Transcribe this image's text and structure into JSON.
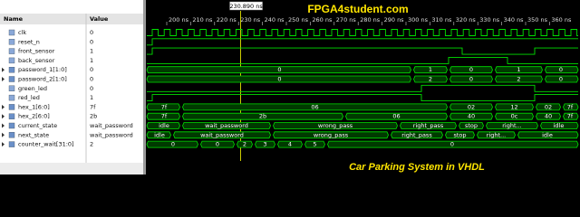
{
  "header": {
    "name": "Name",
    "value": "Value"
  },
  "timeline": {
    "cursor": "230.890 ns",
    "ticks": [
      "200 ns",
      "210 ns",
      "220 ns",
      "230 ns",
      "240 ns",
      "250 ns",
      "260 ns",
      "270 ns",
      "280 ns",
      "290 ns",
      "300 ns",
      "310 ns",
      "320 ns",
      "330 ns",
      "340 ns",
      "350 ns",
      "360 ns"
    ]
  },
  "watermark": {
    "site": "FPGA4student.com",
    "caption": "Car Parking System in VHDL"
  },
  "signals": [
    {
      "name": "clk",
      "value": "0"
    },
    {
      "name": "reset_n",
      "value": "0"
    },
    {
      "name": "front_sensor",
      "value": "1"
    },
    {
      "name": "back_sensor",
      "value": "1"
    },
    {
      "name": "password_1[1:0]",
      "value": "0",
      "wave_labels": [
        "0",
        "1",
        "0",
        "1",
        "0"
      ]
    },
    {
      "name": "password_2[1:0]",
      "value": "0",
      "wave_labels": [
        "0",
        "2",
        "0",
        "2",
        "0"
      ]
    },
    {
      "name": "green_led",
      "value": "0"
    },
    {
      "name": "red_led",
      "value": "1"
    },
    {
      "name": "hex_1[6:0]",
      "value": "7f",
      "wave_labels": [
        "7f",
        "06",
        "02",
        "12",
        "02",
        "7f"
      ]
    },
    {
      "name": "hex_2[6:0]",
      "value": "2b",
      "wave_labels": [
        "7f",
        "2b",
        "06",
        "40",
        "0c",
        "40",
        "7f"
      ]
    },
    {
      "name": "current_state",
      "value": "wait_password",
      "wave_labels": [
        "idle",
        "wait_password",
        "wrong_pass",
        "right_pass",
        "stop",
        "right...",
        "idle"
      ]
    },
    {
      "name": "next_state",
      "value": "wait_password",
      "wave_labels": [
        "idle",
        "wait_password",
        "wrong_pass",
        "right_pass",
        "stop",
        "right...",
        "idle"
      ]
    },
    {
      "name": "counter_wait[31:0]",
      "value": "2",
      "wave_labels": [
        "0",
        "0",
        "2",
        "3",
        "4",
        "5",
        "0"
      ]
    }
  ]
}
